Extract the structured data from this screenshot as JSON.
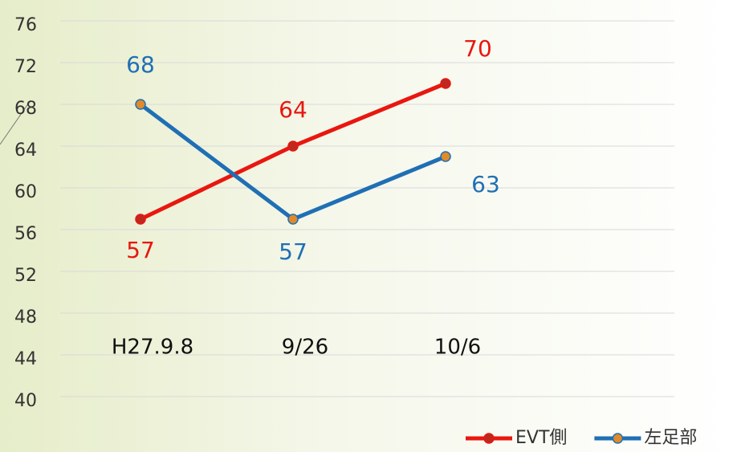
{
  "chart_data": {
    "type": "line",
    "categories": [
      "H27.9.8",
      "9/26",
      "10/6"
    ],
    "series": [
      {
        "name": "EVT側",
        "color": "#e8170f",
        "marker_color": "#c0281e",
        "values": [
          57,
          64,
          70
        ]
      },
      {
        "name": "左足部",
        "color": "#1f6fb5",
        "marker_color": "#e08a2a",
        "values": [
          68,
          57,
          63
        ]
      }
    ],
    "ylim": [
      40,
      76
    ],
    "yticks": [
      40,
      44,
      48,
      52,
      56,
      60,
      64,
      68,
      72,
      76
    ],
    "grid": true,
    "legend": "bottom-right"
  }
}
